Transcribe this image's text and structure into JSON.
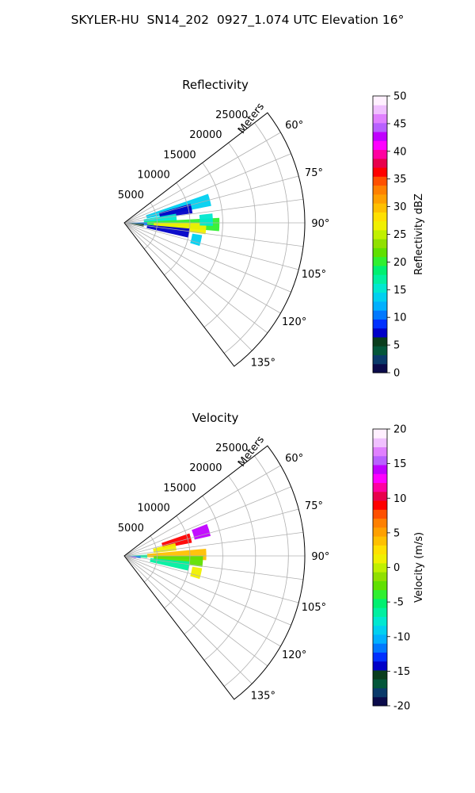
{
  "title": "SKYLER-HU  SN14_202  0927_1.074 UTC Elevation 16°",
  "chart_data": [
    {
      "type": "heatmap",
      "projection": "polar-sector",
      "title": "Reflectivity",
      "range_label": "Meters",
      "range_ticks": [
        "5000",
        "10000",
        "15000",
        "20000",
        "25000"
      ],
      "range_values": [
        5000,
        10000,
        15000,
        20000,
        25000
      ],
      "azimuth_ticks": [
        "60°",
        "75°",
        "90°",
        "105°",
        "120°",
        "135°"
      ],
      "azimuth_values": [
        60,
        75,
        90,
        105,
        120,
        135
      ],
      "azimuth_range": [
        52.5,
        142.5
      ],
      "range_max": 27500,
      "grid": true,
      "colorbar": {
        "label": "Reflectivity dBZ",
        "min": 0,
        "max": 50,
        "ticks": [
          "0",
          "5",
          "10",
          "15",
          "20",
          "25",
          "30",
          "35",
          "40",
          "45",
          "50"
        ],
        "colors": [
          "#0b0b4b",
          "#0a3a6a",
          "#03563a",
          "#0a3d1c",
          "#0000c8",
          "#0030ff",
          "#0078ff",
          "#00b0ff",
          "#00d0f0",
          "#00e8d0",
          "#00f0a0",
          "#00f070",
          "#30f030",
          "#60e000",
          "#90e000",
          "#c0f000",
          "#f0f000",
          "#ffe000",
          "#ffc000",
          "#ffa000",
          "#ff8000",
          "#ff5000",
          "#ff0000",
          "#e8004c",
          "#ff00a0",
          "#ff00ff",
          "#c000ff",
          "#b860ff",
          "#e080ff",
          "#f0c0ff",
          "#fff0ff"
        ]
      },
      "echo_regions": [
        {
          "az": 75,
          "r0": 3500,
          "r1": 13500,
          "v": 14
        },
        {
          "az": 78,
          "r0": 5500,
          "r1": 10500,
          "v": 8
        },
        {
          "az": 84,
          "r0": 3000,
          "r1": 8000,
          "v": 15
        },
        {
          "az": 91,
          "r0": 3000,
          "r1": 14500,
          "v": 20
        },
        {
          "az": 94,
          "r0": 4500,
          "r1": 12500,
          "v": 26
        },
        {
          "az": 99,
          "r0": 3500,
          "r1": 10000,
          "v": 7
        },
        {
          "az": 103,
          "r0": 10500,
          "r1": 12000,
          "v": 13
        },
        {
          "az": 88,
          "r0": 11500,
          "r1": 13500,
          "v": 16
        },
        {
          "az": 92,
          "r0": 500,
          "r1": 3500,
          "v": 10
        },
        {
          "az": 97,
          "r0": 500,
          "r1": 3000,
          "v": 6
        }
      ]
    },
    {
      "type": "heatmap",
      "projection": "polar-sector",
      "title": "Velocity",
      "range_label": "Meters",
      "range_ticks": [
        "5000",
        "10000",
        "15000",
        "20000",
        "25000"
      ],
      "range_values": [
        5000,
        10000,
        15000,
        20000,
        25000
      ],
      "azimuth_ticks": [
        "60°",
        "75°",
        "90°",
        "105°",
        "120°",
        "135°"
      ],
      "azimuth_values": [
        60,
        75,
        90,
        105,
        120,
        135
      ],
      "azimuth_range": [
        52.5,
        142.5
      ],
      "range_max": 27500,
      "grid": true,
      "colorbar": {
        "label": "Velocity (m/s)",
        "min": -20,
        "max": 20,
        "ticks": [
          "-20",
          "-15",
          "-10",
          "-5",
          "0",
          "5",
          "10",
          "15",
          "20"
        ],
        "colors": [
          "#0b0b4b",
          "#0a3a6a",
          "#03563a",
          "#0a3d1c",
          "#0000c8",
          "#0030ff",
          "#0078ff",
          "#00b0ff",
          "#00d0f0",
          "#00e8d0",
          "#00f0a0",
          "#00f070",
          "#30f030",
          "#60e000",
          "#90e000",
          "#c0f000",
          "#f0f000",
          "#ffe000",
          "#ffc000",
          "#ffa000",
          "#ff8000",
          "#ff5000",
          "#ff0000",
          "#e8004c",
          "#ff00a0",
          "#ff00ff",
          "#c000ff",
          "#b860ff",
          "#e080ff",
          "#f0c0ff",
          "#fff0ff"
        ]
      },
      "echo_regions": [
        {
          "az": 75,
          "r0": 6000,
          "r1": 10500,
          "v": 9
        },
        {
          "az": 73,
          "r0": 11000,
          "r1": 13500,
          "v": 14
        },
        {
          "az": 80,
          "r0": 4500,
          "r1": 8000,
          "v": 1
        },
        {
          "az": 89,
          "r0": 3500,
          "r1": 12500,
          "v": 4
        },
        {
          "az": 94,
          "r0": 4500,
          "r1": 12000,
          "v": -2
        },
        {
          "az": 99,
          "r0": 4000,
          "r1": 10000,
          "v": -7
        },
        {
          "az": 103,
          "r0": 10500,
          "r1": 12000,
          "v": 1
        },
        {
          "az": 91,
          "r0": 500,
          "r1": 3500,
          "v": -6
        },
        {
          "az": 95,
          "r0": 500,
          "r1": 2500,
          "v": -12
        },
        {
          "az": 98,
          "r0": 300,
          "r1": 1800,
          "v": 16
        }
      ]
    }
  ]
}
